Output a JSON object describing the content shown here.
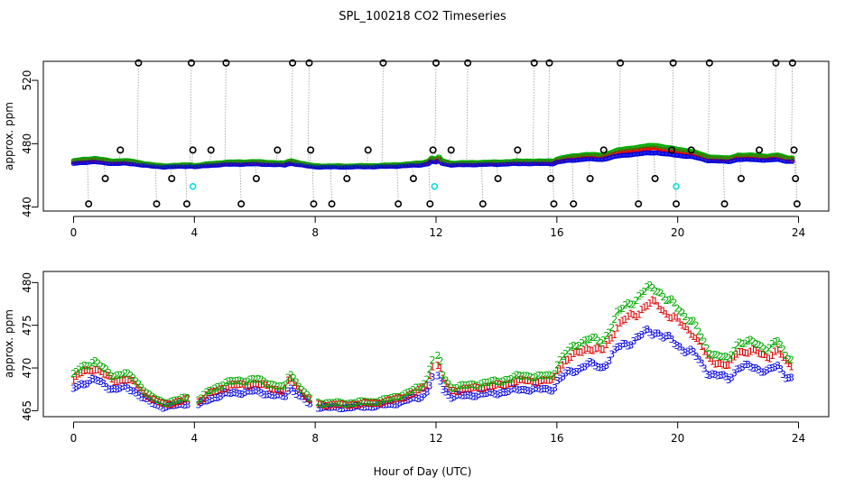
{
  "chart_data": {
    "title": "SPL_100218  CO2 Timeseries",
    "xlabel": "Hour of Day (UTC)",
    "colors": {
      "black": "#000000",
      "red": "#dd0000",
      "green": "#00aa00",
      "blue": "#0000dd",
      "cyan": "#00d8d8",
      "gray": "#999999"
    },
    "panels": [
      {
        "type": "scatter",
        "ylabel": "approx. ppm",
        "xlim": [
          -1,
          25
        ],
        "ylim": [
          437.5,
          532
        ],
        "xticks": [
          "0",
          "4",
          "8",
          "12",
          "16",
          "20",
          "24"
        ],
        "xtick_values": [
          0,
          4,
          8,
          12,
          16,
          20,
          24
        ],
        "yticks": [
          "440",
          "480",
          "520"
        ],
        "ytick_values": [
          440,
          480,
          520
        ],
        "raw_black": {
          "x": [
            0.5,
            1.05,
            1.55,
            2.15,
            2.75,
            3.25,
            3.75,
            3.9,
            3.95,
            4.55,
            5.05,
            5.55,
            6.05,
            6.75,
            7.25,
            7.8,
            7.85,
            7.95,
            8.55,
            9.05,
            9.75,
            10.25,
            10.75,
            11.25,
            11.8,
            11.9,
            12.0,
            12.5,
            13.05,
            13.55,
            14.05,
            14.7,
            15.25,
            15.75,
            15.8,
            15.9,
            16.55,
            17.1,
            17.55,
            18.1,
            18.7,
            19.25,
            19.8,
            19.85,
            19.95,
            20.45,
            21.05,
            21.55,
            22.1,
            22.7,
            23.25,
            23.8,
            23.85,
            23.9,
            23.95
          ],
          "y": [
            442,
            458,
            476,
            531,
            442,
            458,
            442,
            531,
            476,
            476,
            531,
            442,
            458,
            476,
            531,
            531,
            476,
            442,
            442,
            458,
            476,
            531,
            442,
            458,
            442,
            476,
            531,
            476,
            531,
            442,
            458,
            476,
            531,
            531,
            458,
            442,
            442,
            458,
            476,
            531,
            442,
            458,
            476,
            531,
            442,
            476,
            531,
            442,
            458,
            476,
            531,
            531,
            476,
            458,
            442
          ]
        },
        "cyan_outliers": {
          "x": [
            3.95,
            11.95,
            19.95
          ],
          "y": [
            453,
            453,
            453
          ]
        }
      },
      {
        "type": "scatter",
        "ylabel": "approx. ppm",
        "xlim": [
          -1,
          25
        ],
        "ylim": [
          464.3,
          481.3
        ],
        "xticks": [
          "0",
          "4",
          "8",
          "12",
          "16",
          "20",
          "24"
        ],
        "xtick_values": [
          0,
          4,
          8,
          12,
          16,
          20,
          24
        ],
        "yticks": [
          "465",
          "470",
          "475",
          "480"
        ],
        "ytick_values": [
          465,
          470,
          475,
          480
        ],
        "series": [
          {
            "name": "1",
            "symbol": "1",
            "color": "#dd0000",
            "offset_min": 0.35,
            "offset_max": 3.2
          },
          {
            "name": "2",
            "symbol": "2",
            "color": "#00aa00",
            "offset_min": 0.55,
            "offset_max": 5.0
          },
          {
            "name": "3",
            "symbol": "3",
            "color": "#0000dd",
            "offset_min": 0.0,
            "offset_max": 0.0
          }
        ],
        "base_curve": {
          "x": [
            0.0,
            0.3,
            0.7,
            1.0,
            1.3,
            1.7,
            2.0,
            2.3,
            2.6,
            3.0,
            3.5,
            3.9,
            4.0,
            4.2,
            4.5,
            5.0,
            5.5,
            6.0,
            6.5,
            7.0,
            7.1,
            7.2,
            7.4,
            7.7,
            8.0,
            8.5,
            9.0,
            9.5,
            10.0,
            10.5,
            11.0,
            11.5,
            11.75,
            11.85,
            12.0,
            12.1,
            12.2,
            12.5,
            13.0,
            13.5,
            14.0,
            14.5,
            15.0,
            15.5,
            15.9,
            16.0,
            16.3,
            16.6,
            17.0,
            17.5,
            18.0,
            18.5,
            19.0,
            19.3,
            19.6,
            20.0,
            20.5,
            21.0,
            21.4,
            21.7,
            22.0,
            22.5,
            23.0,
            23.3,
            23.6,
            23.8
          ],
          "y": [
            467.5,
            468.2,
            468.6,
            468.0,
            467.5,
            467.6,
            467.3,
            466.5,
            465.8,
            465.4,
            465.6,
            465.9,
            465.5,
            465.7,
            466.3,
            466.9,
            467.1,
            467.2,
            466.9,
            466.5,
            467.3,
            467.6,
            467.0,
            466.0,
            465.4,
            465.3,
            465.3,
            465.4,
            465.5,
            465.7,
            466.1,
            466.6,
            467.4,
            468.9,
            468.2,
            469.3,
            467.6,
            466.6,
            466.7,
            466.9,
            467.0,
            467.3,
            467.5,
            467.4,
            467.5,
            468.4,
            469.2,
            469.7,
            470.4,
            470.0,
            472.2,
            473.2,
            474.1,
            474.3,
            473.5,
            472.6,
            471.7,
            469.4,
            469.0,
            468.7,
            470.1,
            470.0,
            469.6,
            470.1,
            469.0,
            468.8
          ]
        }
      }
    ]
  }
}
